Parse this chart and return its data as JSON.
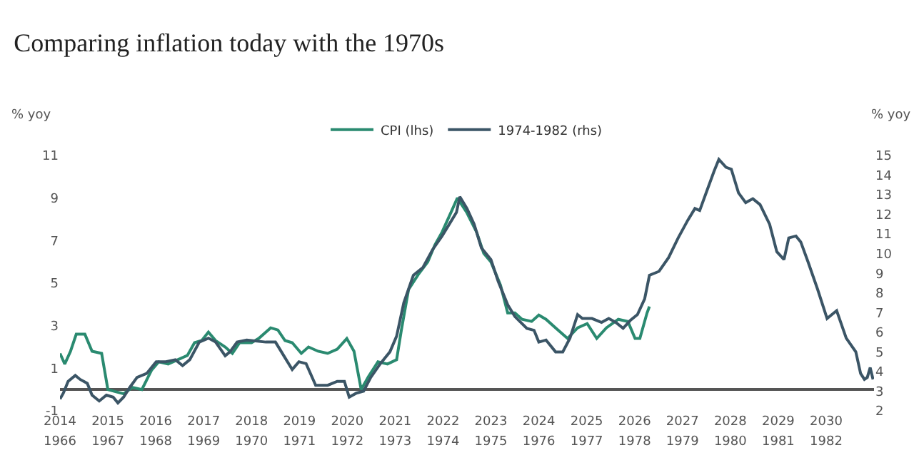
{
  "chart_data": {
    "type": "line",
    "title": "Comparing inflation today with the 1970s",
    "ylabel": "% yoy",
    "y2label": "% yoy",
    "xlim": [
      2014,
      2031
    ],
    "xticks": [
      2014,
      2015,
      2016,
      2017,
      2018,
      2019,
      2020,
      2021,
      2022,
      2023,
      2024,
      2025,
      2026,
      2027,
      2028,
      2029,
      2030
    ],
    "x2lim": [
      1966,
      1983
    ],
    "x2ticks": [
      1966,
      1967,
      1968,
      1969,
      1970,
      1971,
      1972,
      1973,
      1974,
      1975,
      1976,
      1977,
      1978,
      1979,
      1980,
      1981,
      1982
    ],
    "ylim": [
      -1,
      11
    ],
    "yticks": [
      -1,
      1,
      3,
      5,
      7,
      9,
      11
    ],
    "y2lim": [
      2,
      15
    ],
    "y2ticks": [
      2,
      3,
      4,
      5,
      6,
      7,
      8,
      9,
      10,
      11,
      12,
      13,
      14,
      15
    ],
    "legend": "top",
    "marker": "none",
    "line_style": "solid",
    "series": [
      {
        "name": "CPI (lhs)",
        "color": "#2a8a70",
        "x": [
          2014.0,
          2014.1,
          2014.22,
          2014.34,
          2014.52,
          2014.67,
          2014.87,
          2015.0,
          2015.16,
          2015.33,
          2015.51,
          2015.71,
          2015.91,
          2016.06,
          2016.26,
          2016.46,
          2016.66,
          2016.81,
          2016.96,
          2017.1,
          2017.25,
          2017.45,
          2017.6,
          2017.75,
          2018.0,
          2018.15,
          2018.4,
          2018.55,
          2018.7,
          2018.85,
          2019.04,
          2019.19,
          2019.39,
          2019.59,
          2019.79,
          2019.99,
          2020.14,
          2020.29,
          2020.44,
          2020.64,
          2020.84,
          2021.03,
          2021.13,
          2021.28,
          2021.48,
          2021.68,
          2021.83,
          2021.98,
          2022.18,
          2022.3,
          2022.5,
          2022.7,
          2022.85,
          2023.0,
          2023.2,
          2023.35,
          2023.5,
          2023.65,
          2023.85,
          2024.0,
          2024.15,
          2024.35,
          2024.6,
          2024.81,
          2025.01,
          2025.21,
          2025.41,
          2025.66,
          2025.86,
          2026.01,
          2026.11,
          2026.26,
          2026.31
        ],
        "values": [
          1.7,
          1.2,
          1.8,
          2.6,
          2.6,
          1.8,
          1.7,
          0.0,
          -0.1,
          -0.2,
          0.1,
          0.0,
          0.9,
          1.3,
          1.2,
          1.4,
          1.6,
          2.2,
          2.3,
          2.7,
          2.3,
          2.0,
          1.7,
          2.2,
          2.2,
          2.4,
          2.9,
          2.8,
          2.3,
          2.2,
          1.7,
          2.0,
          1.8,
          1.7,
          1.9,
          2.4,
          1.8,
          0.0,
          0.6,
          1.3,
          1.2,
          1.4,
          2.8,
          4.7,
          5.4,
          6.0,
          6.8,
          7.4,
          8.4,
          9.0,
          8.3,
          7.4,
          6.4,
          6.0,
          4.9,
          3.6,
          3.6,
          3.3,
          3.2,
          3.5,
          3.3,
          2.9,
          2.4,
          2.9,
          3.1,
          2.4,
          2.9,
          3.3,
          3.2,
          2.4,
          2.4,
          3.6,
          3.9
        ]
      },
      {
        "name": "1974-1982 (rhs)",
        "color": "#3b5566",
        "axis": "y2",
        "x": [
          2014.0,
          2014.07,
          2014.17,
          2014.32,
          2014.42,
          2014.57,
          2014.67,
          2014.82,
          2014.97,
          2015.11,
          2015.21,
          2015.33,
          2015.46,
          2015.61,
          2015.81,
          2016.01,
          2016.21,
          2016.41,
          2016.56,
          2016.71,
          2016.91,
          2017.1,
          2017.25,
          2017.45,
          2017.55,
          2017.7,
          2017.9,
          2018.3,
          2018.5,
          2018.7,
          2018.85,
          2018.99,
          2019.14,
          2019.34,
          2019.59,
          2019.79,
          2019.94,
          2020.04,
          2020.19,
          2020.34,
          2020.49,
          2020.69,
          2020.89,
          2021.03,
          2021.18,
          2021.38,
          2021.58,
          2021.78,
          2021.98,
          2022.13,
          2022.28,
          2022.35,
          2022.5,
          2022.65,
          2022.8,
          2023.0,
          2023.15,
          2023.35,
          2023.5,
          2023.75,
          2023.9,
          2024.0,
          2024.15,
          2024.35,
          2024.5,
          2024.65,
          2024.81,
          2024.91,
          2025.11,
          2025.31,
          2025.46,
          2025.61,
          2025.76,
          2025.91,
          2026.06,
          2026.21,
          2026.31,
          2026.51,
          2026.71,
          2026.91,
          2027.11,
          2027.26,
          2027.36,
          2027.51,
          2027.66,
          2027.76,
          2027.91,
          2028.02,
          2028.17,
          2028.32,
          2028.47,
          2028.62,
          2028.82,
          2028.97,
          2029.12,
          2029.22,
          2029.37,
          2029.47,
          2029.62,
          2029.82,
          2030.02,
          2030.22,
          2030.42,
          2030.62,
          2030.72,
          2030.8,
          2030.86,
          2030.92,
          2030.98
        ],
        "values": [
          2.6,
          2.9,
          3.5,
          3.8,
          3.6,
          3.4,
          2.8,
          2.5,
          2.8,
          2.7,
          2.4,
          2.7,
          3.2,
          3.7,
          3.9,
          4.5,
          4.5,
          4.6,
          4.3,
          4.6,
          5.5,
          5.7,
          5.5,
          4.8,
          5.0,
          5.5,
          5.6,
          5.5,
          5.5,
          4.7,
          4.1,
          4.5,
          4.4,
          3.3,
          3.3,
          3.5,
          3.5,
          2.7,
          2.9,
          3.0,
          3.7,
          4.4,
          5.0,
          5.8,
          7.5,
          8.9,
          9.3,
          10.2,
          10.9,
          11.5,
          12.1,
          12.9,
          12.3,
          11.5,
          10.3,
          9.7,
          8.6,
          7.4,
          6.8,
          6.2,
          6.1,
          5.5,
          5.6,
          5.0,
          5.0,
          5.7,
          6.9,
          6.7,
          6.7,
          6.5,
          6.7,
          6.5,
          6.2,
          6.6,
          6.9,
          7.7,
          8.9,
          9.1,
          9.8,
          10.8,
          11.7,
          12.3,
          12.2,
          13.2,
          14.2,
          14.8,
          14.4,
          14.3,
          13.1,
          12.6,
          12.8,
          12.5,
          11.5,
          10.1,
          9.7,
          10.8,
          10.9,
          10.6,
          9.6,
          8.2,
          6.7,
          7.1,
          5.7,
          5.0,
          3.9,
          3.6,
          3.7,
          4.2,
          3.6
        ]
      }
    ]
  }
}
